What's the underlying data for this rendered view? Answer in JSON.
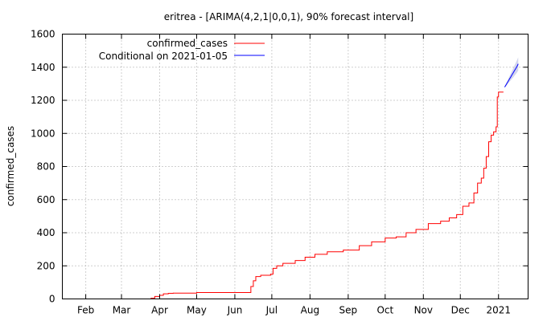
{
  "chart_data": {
    "type": "line",
    "title": "eritrea -  [ARIMA(4,2,1|0,0,1), 90% forecast interval]",
    "xlabel": "",
    "ylabel": "confirmed_cases",
    "ylim": [
      0,
      1600
    ],
    "yticks": [
      0,
      200,
      400,
      600,
      800,
      1000,
      1200,
      1400,
      1600
    ],
    "xlim": [
      "2020-01-13",
      "2021-01-25"
    ],
    "xticks": [
      {
        "label": "Feb",
        "date": "2020-02-01"
      },
      {
        "label": "Mar",
        "date": "2020-03-01"
      },
      {
        "label": "Apr",
        "date": "2020-04-01"
      },
      {
        "label": "May",
        "date": "2020-05-01"
      },
      {
        "label": "Jun",
        "date": "2020-06-01"
      },
      {
        "label": "Jul",
        "date": "2020-07-01"
      },
      {
        "label": "Aug",
        "date": "2020-08-01"
      },
      {
        "label": "Sep",
        "date": "2020-09-01"
      },
      {
        "label": "Oct",
        "date": "2020-10-01"
      },
      {
        "label": "Nov",
        "date": "2020-11-01"
      },
      {
        "label": "Dec",
        "date": "2020-12-01"
      },
      {
        "label": "2021",
        "date": "2021-01-01"
      }
    ],
    "grid": true,
    "legend": "top-left",
    "series": [
      {
        "name": "confirmed_cases",
        "color": "#ff0000",
        "x": [
          "2020-01-13",
          "2020-03-20",
          "2020-03-25",
          "2020-03-28",
          "2020-04-01",
          "2020-04-04",
          "2020-04-08",
          "2020-04-12",
          "2020-04-18",
          "2020-05-01",
          "2020-05-20",
          "2020-06-12",
          "2020-06-14",
          "2020-06-16",
          "2020-06-18",
          "2020-06-22",
          "2020-06-27",
          "2020-06-30",
          "2020-07-02",
          "2020-07-05",
          "2020-07-10",
          "2020-07-20",
          "2020-07-28",
          "2020-08-05",
          "2020-08-15",
          "2020-08-28",
          "2020-09-10",
          "2020-09-20",
          "2020-10-01",
          "2020-10-10",
          "2020-10-18",
          "2020-10-26",
          "2020-11-05",
          "2020-11-15",
          "2020-11-22",
          "2020-11-28",
          "2020-12-03",
          "2020-12-08",
          "2020-12-12",
          "2020-12-15",
          "2020-12-18",
          "2020-12-20",
          "2020-12-22",
          "2020-12-24",
          "2020-12-26",
          "2020-12-28",
          "2020-12-30",
          "2020-12-31",
          "2021-01-01",
          "2021-01-03",
          "2021-01-05"
        ],
        "y": [
          0,
          0,
          4,
          15,
          22,
          31,
          34,
          35,
          35,
          39,
          39,
          39,
          75,
          110,
          135,
          143,
          143,
          150,
          185,
          200,
          215,
          232,
          252,
          270,
          285,
          295,
          322,
          345,
          368,
          375,
          400,
          420,
          455,
          470,
          490,
          510,
          560,
          580,
          640,
          700,
          730,
          790,
          860,
          950,
          990,
          1010,
          1040,
          1220,
          1250,
          1250,
          1250
        ]
      },
      {
        "name": "Conditional on 2021-01-05",
        "color": "#0000ff",
        "x": [
          "2021-01-06",
          "2021-01-07",
          "2021-01-08",
          "2021-01-09",
          "2021-01-10",
          "2021-01-11",
          "2021-01-12",
          "2021-01-13",
          "2021-01-14",
          "2021-01-15",
          "2021-01-16",
          "2021-01-17"
        ],
        "y": [
          1280,
          1292,
          1305,
          1317,
          1330,
          1342,
          1355,
          1367,
          1380,
          1392,
          1405,
          1420
        ],
        "lower": [
          1275,
          1284,
          1294,
          1303,
          1313,
          1321,
          1331,
          1339,
          1349,
          1358,
          1368,
          1380
        ],
        "upper": [
          1285,
          1300,
          1316,
          1331,
          1347,
          1363,
          1379,
          1395,
          1411,
          1427,
          1443,
          1460
        ]
      }
    ]
  }
}
